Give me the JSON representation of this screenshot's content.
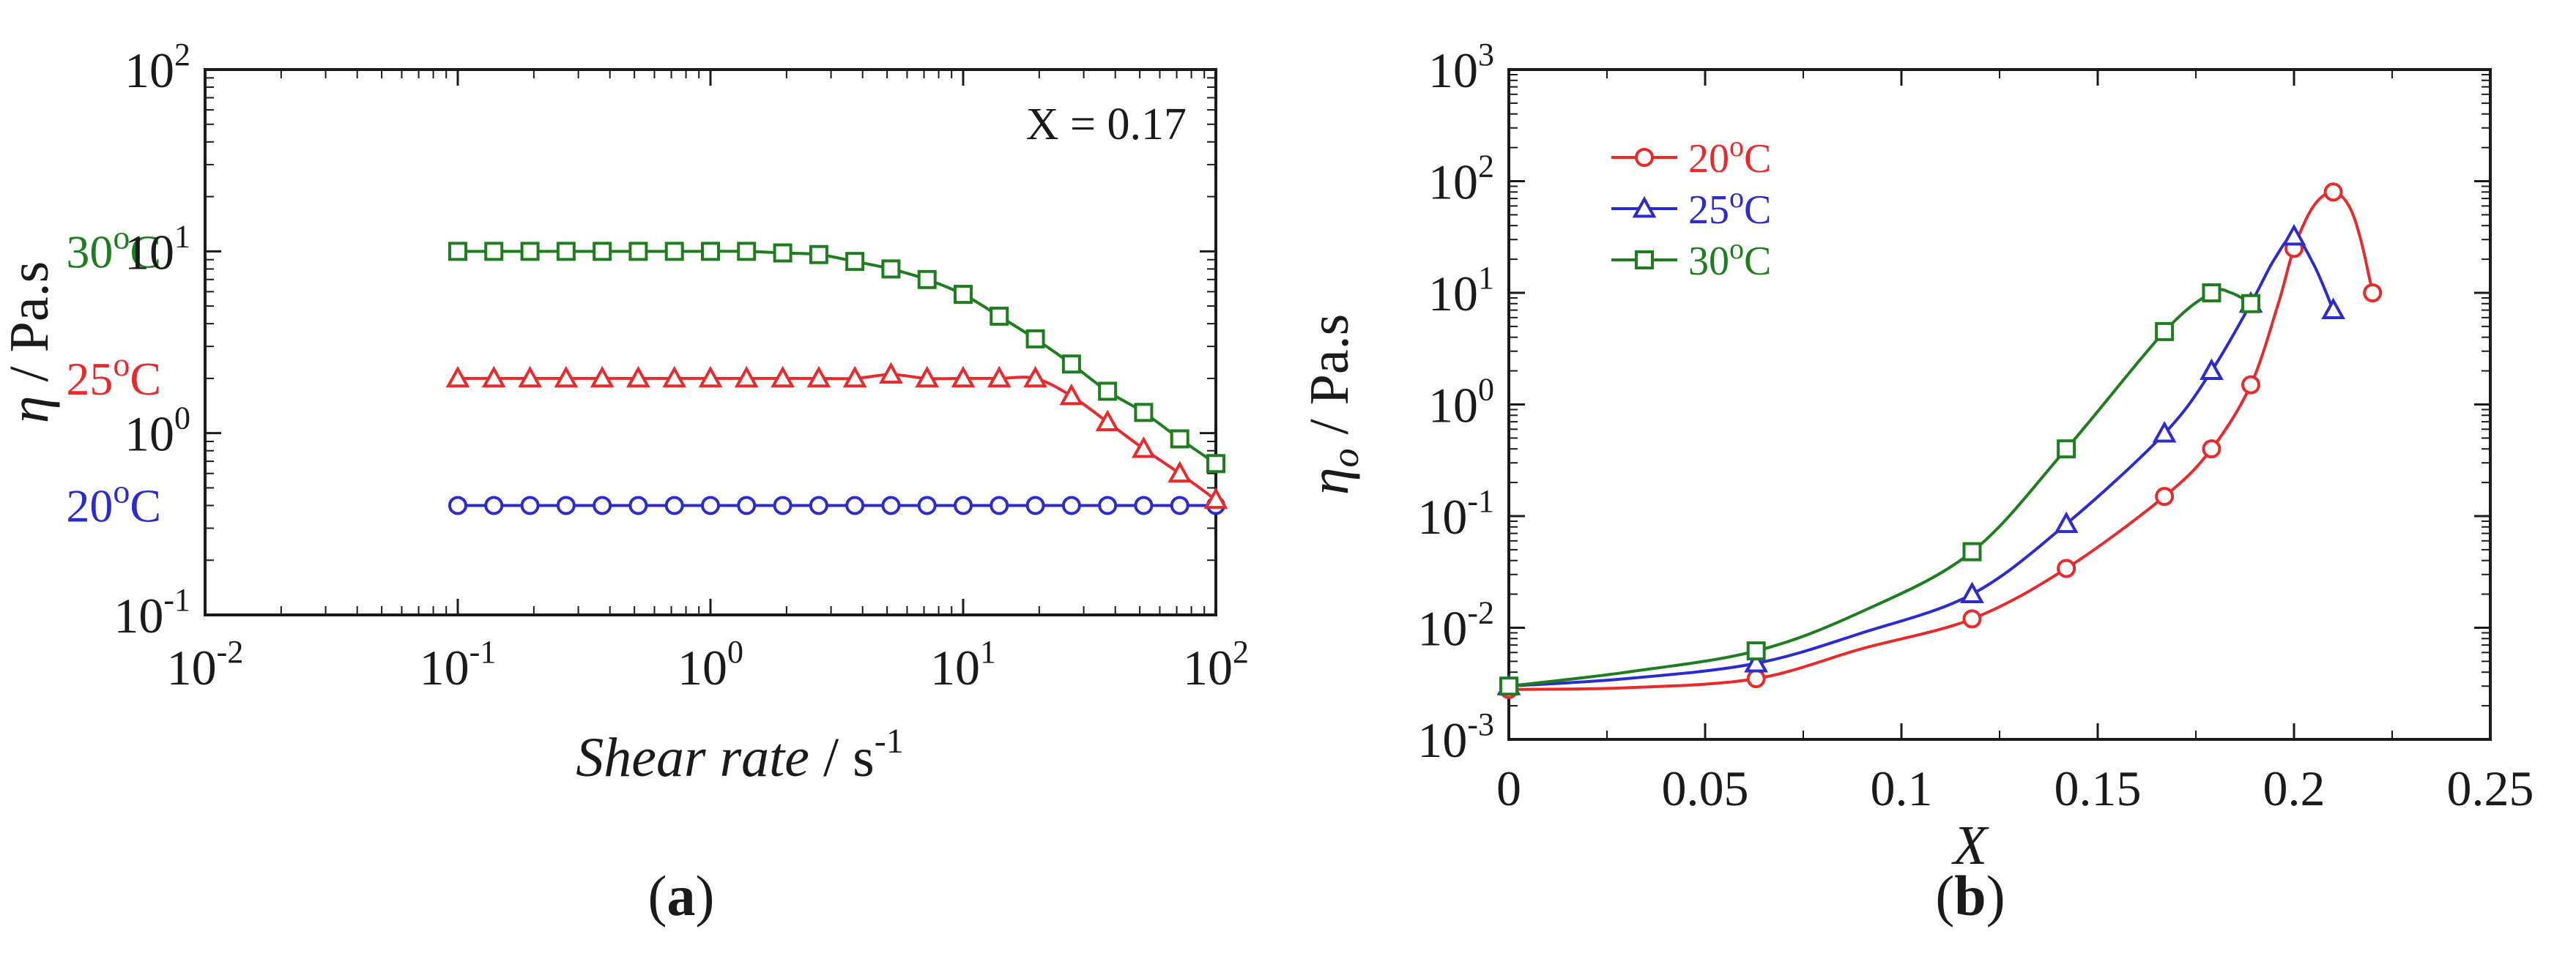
{
  "chart_data": [
    {
      "type": "line",
      "panel_label": {
        "open": "(",
        "letter": "a",
        "close": ")"
      },
      "x_scale": "log",
      "y_scale": "log",
      "xlim": [
        0.01,
        100
      ],
      "ylim": [
        0.1,
        100
      ],
      "x_ticks": [
        {
          "base": "10",
          "exp": "-2",
          "value": 0.01
        },
        {
          "base": "10",
          "exp": "-1",
          "value": 0.1
        },
        {
          "base": "10",
          "exp": "0",
          "value": 1
        },
        {
          "base": "10",
          "exp": "1",
          "value": 10
        },
        {
          "base": "10",
          "exp": "2",
          "value": 100
        }
      ],
      "y_ticks": [
        {
          "base": "10",
          "exp": "-1",
          "value": 0.1
        },
        {
          "base": "10",
          "exp": "0",
          "value": 1
        },
        {
          "base": "10",
          "exp": "1",
          "value": 10
        },
        {
          "base": "10",
          "exp": "2",
          "value": 100
        }
      ],
      "xlabel": {
        "italic": "Shear rate",
        "rest": " / s",
        "sup": "-1"
      },
      "ylabel": {
        "symbol": "η",
        "rest": " / Pa.s"
      },
      "annotation": "X = 0.17",
      "series": [
        {
          "name": "20°C",
          "label": {
            "prefix": "20",
            "sup": "o",
            "suffix": "C"
          },
          "color": "#2b2bd0",
          "marker": "circle",
          "x": [
            0.1,
            0.1389,
            0.1931,
            0.2683,
            0.3728,
            0.5179,
            0.7197,
            1.0,
            1.389,
            1.931,
            2.683,
            3.728,
            5.179,
            7.197,
            10.0,
            13.89,
            19.31,
            26.83,
            37.28,
            51.79,
            71.97,
            100.0
          ],
          "y": [
            0.4,
            0.4,
            0.4,
            0.4,
            0.4,
            0.4,
            0.4,
            0.4,
            0.4,
            0.4,
            0.4,
            0.4,
            0.4,
            0.4,
            0.4,
            0.4,
            0.4,
            0.4,
            0.4,
            0.4,
            0.4,
            0.4
          ]
        },
        {
          "name": "25°C",
          "label": {
            "prefix": "25",
            "sup": "o",
            "suffix": "C"
          },
          "color": "#e82a2a",
          "marker": "triangle",
          "x": [
            0.1,
            0.1389,
            0.1931,
            0.2683,
            0.3728,
            0.5179,
            0.7197,
            1.0,
            1.389,
            1.931,
            2.683,
            3.728,
            5.179,
            7.197,
            10.0,
            13.89,
            19.31,
            26.83,
            37.28,
            51.79,
            71.97,
            100.0
          ],
          "y": [
            2.0,
            2.0,
            2.0,
            2.0,
            2.0,
            2.0,
            2.0,
            2.0,
            2.0,
            2.0,
            2.0,
            2.0,
            2.1,
            2.0,
            2.0,
            2.0,
            2.0,
            1.6,
            1.15,
            0.82,
            0.6,
            0.43
          ]
        },
        {
          "name": "30°C",
          "label": {
            "prefix": "30",
            "sup": "o",
            "suffix": "C"
          },
          "color": "#1e7d1e",
          "marker": "square",
          "x": [
            0.1,
            0.1389,
            0.1931,
            0.2683,
            0.3728,
            0.5179,
            0.7197,
            1.0,
            1.389,
            1.931,
            2.683,
            3.728,
            5.179,
            7.197,
            10.0,
            13.89,
            19.31,
            26.83,
            37.28,
            51.79,
            71.97,
            100.0
          ],
          "y": [
            10.0,
            10.0,
            10.0,
            10.0,
            10.0,
            10.0,
            10.0,
            10.0,
            10.0,
            9.8,
            9.6,
            8.8,
            8.0,
            7.0,
            5.8,
            4.4,
            3.3,
            2.4,
            1.7,
            1.3,
            0.93,
            0.68
          ]
        }
      ]
    },
    {
      "type": "line",
      "panel_label": {
        "open": "(",
        "letter": "b",
        "close": ")"
      },
      "x_scale": "linear",
      "y_scale": "log",
      "xlim": [
        0,
        0.25
      ],
      "ylim": [
        0.001,
        1000
      ],
      "x_ticks": [
        {
          "label": "0",
          "value": 0
        },
        {
          "label": "0.05",
          "value": 0.05
        },
        {
          "label": "0.1",
          "value": 0.1
        },
        {
          "label": "0.15",
          "value": 0.15
        },
        {
          "label": "0.2",
          "value": 0.2
        },
        {
          "label": "0.25",
          "value": 0.25
        }
      ],
      "y_ticks": [
        {
          "base": "10",
          "exp": "-3",
          "value": 0.001
        },
        {
          "base": "10",
          "exp": "-2",
          "value": 0.01
        },
        {
          "base": "10",
          "exp": "-1",
          "value": 0.1
        },
        {
          "base": "10",
          "exp": "0",
          "value": 1
        },
        {
          "base": "10",
          "exp": "1",
          "value": 10
        },
        {
          "base": "10",
          "exp": "2",
          "value": 100
        },
        {
          "base": "10",
          "exp": "3",
          "value": 1000
        }
      ],
      "xlabel": {
        "italic": "X"
      },
      "ylabel": {
        "symbol": "η",
        "sub": "o",
        "rest": " / Pa.s"
      },
      "legend_position": "top-left",
      "series": [
        {
          "name": "20°C",
          "label": {
            "prefix": "20",
            "sup": "o",
            "suffix": "C"
          },
          "color": "#e82a2a",
          "marker": "circle",
          "x": [
            0,
            0.063,
            0.118,
            0.142,
            0.167,
            0.179,
            0.189,
            0.2,
            0.21,
            0.22
          ],
          "y": [
            0.0028,
            0.0035,
            0.012,
            0.034,
            0.15,
            0.4,
            1.5,
            25,
            80,
            10
          ],
          "curve_x": [
            0,
            0.03,
            0.063,
            0.09,
            0.118,
            0.142,
            0.167,
            0.179,
            0.189,
            0.196,
            0.2,
            0.205,
            0.21,
            0.214,
            0.217,
            0.22
          ],
          "curve_y": [
            0.0028,
            0.0029,
            0.0035,
            0.0065,
            0.012,
            0.034,
            0.15,
            0.4,
            1.5,
            8,
            25,
            60,
            80,
            60,
            30,
            10
          ]
        },
        {
          "name": "25°C",
          "label": {
            "prefix": "25",
            "sup": "o",
            "suffix": "C"
          },
          "color": "#2b2bd0",
          "marker": "triangle",
          "x": [
            0,
            0.063,
            0.118,
            0.142,
            0.167,
            0.179,
            0.189,
            0.2,
            0.21
          ],
          "y": [
            0.003,
            0.0048,
            0.02,
            0.085,
            0.55,
            2.0,
            8.0,
            32,
            7
          ],
          "curve_x": [
            0,
            0.03,
            0.063,
            0.09,
            0.118,
            0.142,
            0.167,
            0.179,
            0.189,
            0.195,
            0.2,
            0.205,
            0.21
          ],
          "curve_y": [
            0.003,
            0.0035,
            0.0048,
            0.009,
            0.02,
            0.085,
            0.55,
            2.0,
            8.0,
            20,
            32,
            18,
            7
          ]
        },
        {
          "name": "30°C",
          "label": {
            "prefix": "30",
            "sup": "o",
            "suffix": "C"
          },
          "color": "#1e7d1e",
          "marker": "square",
          "x": [
            0,
            0.063,
            0.118,
            0.142,
            0.167,
            0.179,
            0.189
          ],
          "y": [
            0.003,
            0.0062,
            0.048,
            0.4,
            4.5,
            10,
            8
          ],
          "curve_x": [
            0,
            0.03,
            0.063,
            0.09,
            0.118,
            0.142,
            0.167,
            0.179,
            0.184,
            0.189
          ],
          "curve_y": [
            0.003,
            0.004,
            0.0062,
            0.014,
            0.048,
            0.4,
            4.5,
            10,
            10,
            8
          ]
        }
      ]
    }
  ]
}
